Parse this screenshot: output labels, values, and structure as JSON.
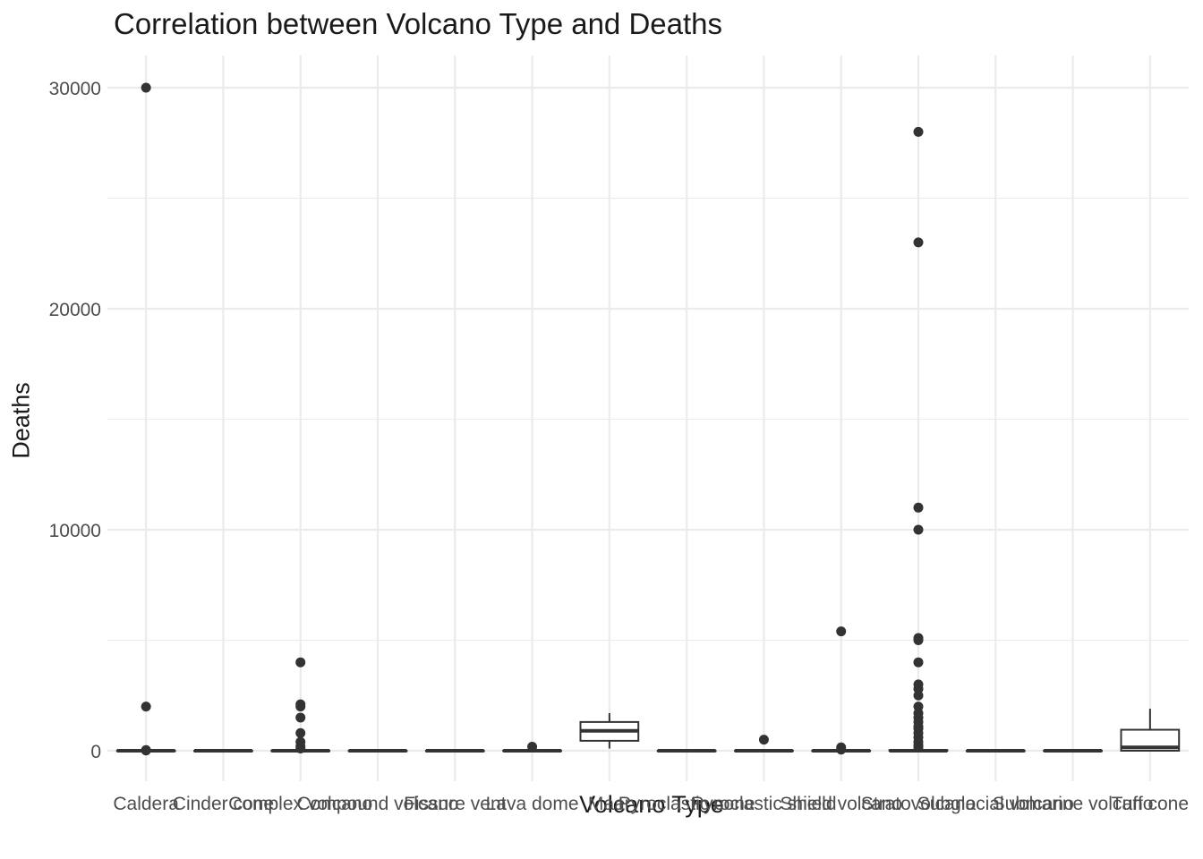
{
  "chart_data": {
    "type": "box",
    "title": "Correlation between Volcano Type and Deaths",
    "xlabel": "Volcano Type",
    "ylabel": "Deaths",
    "ylim": [
      -1500,
      31500
    ],
    "yticks": [
      0,
      10000,
      20000,
      30000
    ],
    "grid": true,
    "legend": "none",
    "colors": {
      "box_stroke": "#333333",
      "grid": "#ebebeb",
      "text": "#4d4d4d",
      "point": "#333333"
    },
    "categories": [
      "Caldera",
      "Cinder cone",
      "Complex volcano",
      "Compound volcano",
      "Fissure vent",
      "Lava dome",
      "Maar",
      "Pyroclastic cone",
      "Pyroclastic shield",
      "Shield volcano",
      "Stratovolcano",
      "Subglacial volcano",
      "Submarine volcano",
      "Tuff cone"
    ],
    "boxes": [
      {
        "category": "Caldera",
        "q1": 0,
        "median": 0,
        "q3": 5,
        "whisker_low": 0,
        "whisker_high": 10,
        "outliers": [
          30000,
          2000,
          30,
          10
        ]
      },
      {
        "category": "Cinder cone",
        "q1": 0,
        "median": 0,
        "q3": 0,
        "whisker_low": 0,
        "whisker_high": 0,
        "outliers": []
      },
      {
        "category": "Complex volcano",
        "q1": 0,
        "median": 0,
        "q3": 5,
        "whisker_low": 0,
        "whisker_high": 10,
        "outliers": [
          4000,
          2100,
          2000,
          1500,
          800,
          400,
          200,
          100
        ]
      },
      {
        "category": "Compound volcano",
        "q1": 0,
        "median": 0,
        "q3": 0,
        "whisker_low": 0,
        "whisker_high": 0,
        "outliers": []
      },
      {
        "category": "Fissure vent",
        "q1": 0,
        "median": 0,
        "q3": 0,
        "whisker_low": 0,
        "whisker_high": 0,
        "outliers": []
      },
      {
        "category": "Lava dome",
        "q1": 0,
        "median": 0,
        "q3": 5,
        "whisker_low": 0,
        "whisker_high": 10,
        "outliers": [
          180
        ]
      },
      {
        "category": "Maar",
        "q1": 450,
        "median": 900,
        "q3": 1300,
        "whisker_low": 100,
        "whisker_high": 1700,
        "outliers": []
      },
      {
        "category": "Pyroclastic cone",
        "q1": 0,
        "median": 0,
        "q3": 0,
        "whisker_low": 0,
        "whisker_high": 0,
        "outliers": []
      },
      {
        "category": "Pyroclastic shield",
        "q1": 0,
        "median": 0,
        "q3": 5,
        "whisker_low": 0,
        "whisker_high": 10,
        "outliers": [
          500
        ]
      },
      {
        "category": "Shield volcano",
        "q1": 0,
        "median": 0,
        "q3": 5,
        "whisker_low": 0,
        "whisker_high": 10,
        "outliers": [
          5400,
          150,
          50
        ]
      },
      {
        "category": "Stratovolcano",
        "q1": 0,
        "median": 0,
        "q3": 30,
        "whisker_low": 0,
        "whisker_high": 80,
        "outliers": [
          28000,
          23000,
          11000,
          10000,
          5100,
          5000,
          4000,
          3000,
          2800,
          2500,
          2000,
          1700,
          1500,
          1300,
          1100,
          1000,
          800,
          600,
          400,
          250,
          150
        ]
      },
      {
        "category": "Subglacial volcano",
        "q1": 0,
        "median": 0,
        "q3": 0,
        "whisker_low": 0,
        "whisker_high": 0,
        "outliers": []
      },
      {
        "category": "Submarine volcano",
        "q1": 0,
        "median": 0,
        "q3": 5,
        "whisker_low": 0,
        "whisker_high": 10,
        "outliers": []
      },
      {
        "category": "Tuff cone",
        "q1": 0,
        "median": 150,
        "q3": 950,
        "whisker_low": 0,
        "whisker_high": 1900,
        "outliers": []
      }
    ]
  }
}
